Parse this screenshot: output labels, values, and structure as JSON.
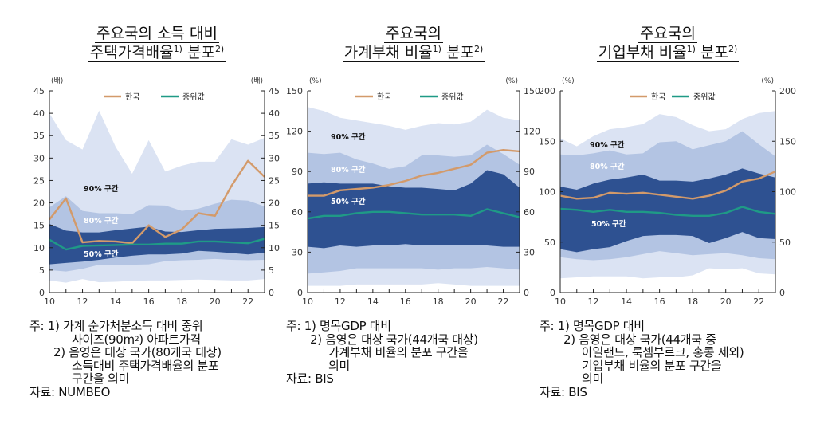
{
  "panels": [
    {
      "title": {
        "line1": "주요국의 소득 대비",
        "line2_a": "주택가격배율",
        "sup1": "1)",
        "line2_b": " 분포",
        "sup2": "2)"
      },
      "notes": {
        "n1_label": "주: 1) ",
        "n1_a": "가계 순가처분소득 대비 중위",
        "n1_b1": "사이즈(90m",
        "n1_b_sup": "2",
        "n1_b2": ") 아파트가격",
        "n2_label": "2) ",
        "n2_a": "음영은 대상 국가(80개국 대상)",
        "n2_b": "소득대비 주택가격배율의 분포",
        "n2_c": "구간을 의미",
        "source": "자료: NUMBEO"
      }
    },
    {
      "title": {
        "line1": "주요국의",
        "line2_a": "가계부채 비율",
        "sup1": "1)",
        "line2_b": " 분포",
        "sup2": "2)"
      },
      "notes": {
        "n1_label": "주: 1) ",
        "n1_a": "명목GDP 대비",
        "n2_label": "2) ",
        "n2_a": "음영은 대상 국가(44개국 대상)",
        "n2_b": "가계부채 비율의 분포 구간을",
        "n2_c": "의미",
        "source": "자료: BIS"
      }
    },
    {
      "title": {
        "line1": "주요국의",
        "line2_a": "기업부채 비율",
        "sup1": "1)",
        "line2_b": " 분포",
        "sup2": "2)"
      },
      "notes": {
        "n1_label": "주: 1) ",
        "n1_a": "명목GDP 대비",
        "n2_label": "2) ",
        "n2_a": "음영은 대상 국가(44개국 중",
        "n2_b": "아일랜드, 룩셈부르크, 홍콩 제외)",
        "n2_c": "기업부채 비율의 분포 구간을",
        "n2_d": "의미",
        "source": "자료: BIS"
      }
    }
  ],
  "colors": {
    "band90": "#dbe3f3",
    "band80": "#b3c4e3",
    "band50": "#2e5191",
    "korea": "#d39a6a",
    "median": "#1f9a86"
  },
  "chart_data": [
    {
      "type": "area",
      "unit_left": "(배)",
      "unit_right": "(배)",
      "x": [
        10,
        11,
        12,
        13,
        14,
        15,
        16,
        17,
        18,
        19,
        20,
        21,
        22,
        23
      ],
      "xticks": [
        "10",
        "12",
        "14",
        "16",
        "18",
        "20",
        "22"
      ],
      "ylim": [
        0,
        45
      ],
      "yticks": [
        0,
        5,
        10,
        15,
        20,
        25,
        30,
        35,
        40,
        45
      ],
      "legend": {
        "korea": "한국",
        "median": "중위값"
      },
      "band_labels": {
        "b90": "90% 구간",
        "b80": "80% 구간",
        "b50": "50% 구간"
      },
      "bands": {
        "p5": [
          2.7,
          2.2,
          3,
          2.3,
          2.4,
          2.6,
          2.7,
          2.7,
          2.8,
          2.9,
          2.8,
          2.7,
          2.7,
          3
        ],
        "p10": [
          5,
          4.7,
          5.3,
          6.2,
          6.1,
          6.2,
          6.3,
          7,
          7.2,
          7.3,
          7.5,
          7.3,
          7.2,
          7.3
        ],
        "p25": [
          6.3,
          6.6,
          6.9,
          7.3,
          7.8,
          8.2,
          8.5,
          8.5,
          8.7,
          9.3,
          9.1,
          8.8,
          8.5,
          8.9
        ],
        "p75": [
          15.3,
          13.8,
          13.4,
          13.4,
          13.9,
          14.3,
          14.7,
          13.6,
          13.5,
          13.9,
          14.2,
          14.3,
          14.4,
          14.6
        ],
        "p90": [
          19,
          21.5,
          18.2,
          17.7,
          17.7,
          17.5,
          19.5,
          19.4,
          18.2,
          18.7,
          19.8,
          20.7,
          20.5,
          19.2
        ],
        "p95": [
          40,
          34,
          31.9,
          40.6,
          32.5,
          26.5,
          34,
          27,
          28.3,
          29.2,
          29.2,
          34.2,
          33,
          34.5
        ]
      },
      "series": [
        {
          "name": "한국",
          "values": [
            16.3,
            21,
            11.2,
            11.5,
            11.4,
            11,
            15,
            12.4,
            14.1,
            17.7,
            17.1,
            23.8,
            29.4,
            25.8
          ]
        },
        {
          "name": "중위값",
          "values": [
            11.8,
            9.6,
            10.4,
            10.5,
            10.6,
            10.7,
            10.7,
            10.9,
            10.9,
            11.4,
            11.4,
            11.2,
            11,
            12
          ]
        }
      ]
    },
    {
      "type": "area",
      "unit_left": "(%)",
      "unit_right": "(%)",
      "x": [
        10,
        11,
        12,
        13,
        14,
        15,
        16,
        17,
        18,
        19,
        20,
        21,
        22,
        23
      ],
      "xticks": [
        "10",
        "12",
        "14",
        "16",
        "18",
        "20",
        "22"
      ],
      "ylim": [
        0,
        150
      ],
      "yticks": [
        0,
        30,
        60,
        90,
        120,
        150
      ],
      "legend": {
        "korea": "한국",
        "median": "중위값"
      },
      "band_labels": {
        "b90": "90% 구간",
        "b80": "80% 구간",
        "b50": "50% 구간"
      },
      "bands": {
        "p5": [
          5,
          5,
          5,
          6,
          6,
          6,
          6,
          6,
          7,
          6,
          5,
          5,
          5,
          5
        ],
        "p10": [
          14,
          15,
          16,
          18,
          18,
          18,
          18,
          18,
          17,
          18,
          18,
          19,
          18,
          17
        ],
        "p25": [
          34,
          33,
          35,
          34,
          35,
          35,
          36,
          35,
          35,
          35,
          35,
          35,
          34,
          34
        ],
        "p75": [
          81,
          82,
          81,
          81,
          81,
          79,
          78,
          78,
          77,
          76,
          81,
          91,
          88,
          78
        ],
        "p90": [
          104,
          103,
          104,
          99,
          96,
          92,
          94,
          102,
          102,
          101,
          102,
          110,
          103,
          95
        ],
        "p95": [
          138,
          135,
          130,
          128,
          126,
          124,
          121,
          124,
          126,
          125,
          127,
          136,
          130,
          128
        ]
      },
      "series": [
        {
          "name": "한국",
          "values": [
            72,
            72,
            76,
            77,
            78,
            80,
            83,
            87,
            89,
            92,
            95,
            104,
            106,
            105
          ]
        },
        {
          "name": "중위값",
          "values": [
            55,
            57,
            57,
            59,
            60,
            60,
            59,
            58,
            58,
            58,
            57,
            62,
            59,
            56
          ]
        }
      ]
    },
    {
      "type": "area",
      "unit_left": "(%)",
      "unit_right": "(%)",
      "x": [
        10,
        11,
        12,
        13,
        14,
        15,
        16,
        17,
        18,
        19,
        20,
        21,
        22,
        23
      ],
      "xticks": [
        "10",
        "12",
        "14",
        "16",
        "18",
        "20",
        "22"
      ],
      "ylim": [
        0,
        200
      ],
      "yticks": [
        0,
        50,
        100,
        150,
        200
      ],
      "legend": {
        "korea": "한국",
        "median": "중위값"
      },
      "band_labels": {
        "b90": "90% 구간",
        "b80": "80% 구간",
        "b50": "50% 구간"
      },
      "bands": {
        "p5": [
          14,
          15,
          16,
          16,
          16,
          14,
          15,
          15,
          17,
          24,
          23,
          24,
          19,
          18
        ],
        "p10": [
          35,
          33,
          32,
          33,
          35,
          38,
          41,
          39,
          37,
          38,
          39,
          37,
          34,
          33
        ],
        "p25": [
          43,
          40,
          43,
          45,
          51,
          56,
          57,
          57,
          56,
          49,
          54,
          60,
          54,
          53
        ],
        "p75": [
          105,
          102,
          108,
          112,
          114,
          117,
          111,
          111,
          110,
          113,
          117,
          123,
          118,
          114
        ],
        "p90": [
          137,
          136,
          138,
          141,
          137,
          138,
          149,
          150,
          142,
          146,
          150,
          160,
          147,
          135
        ],
        "p95": [
          153,
          145,
          155,
          162,
          164,
          167,
          177,
          174,
          166,
          160,
          162,
          172,
          178,
          180
        ]
      },
      "series": [
        {
          "name": "한국",
          "values": [
            96,
            93,
            94,
            99,
            98,
            99,
            97,
            95,
            93,
            96,
            101,
            110,
            113,
            120
          ]
        },
        {
          "name": "중위값",
          "values": [
            83,
            82,
            80,
            82,
            80,
            80,
            79,
            77,
            76,
            76,
            79,
            85,
            80,
            78
          ]
        }
      ]
    }
  ]
}
